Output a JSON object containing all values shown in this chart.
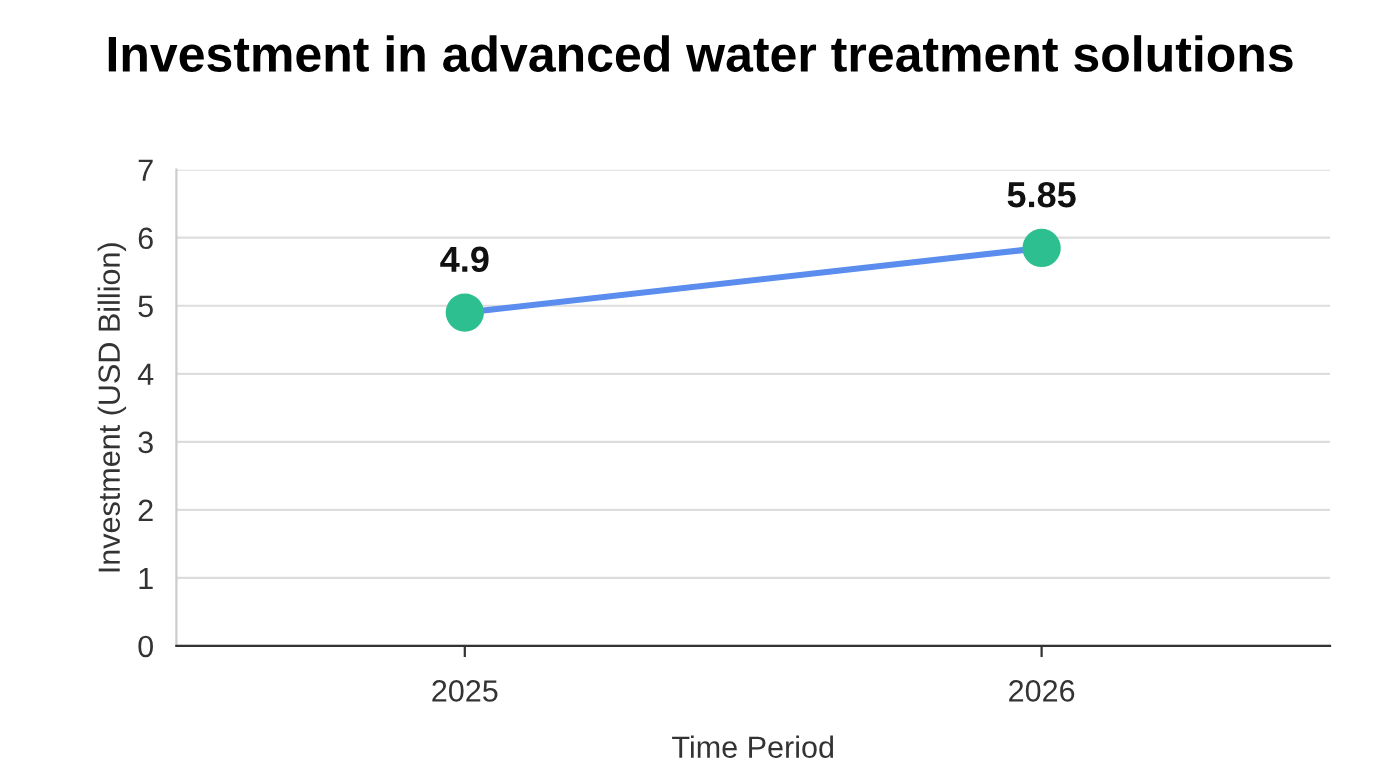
{
  "chart_data": {
    "type": "line",
    "title": "Investment in advanced water treatment solutions",
    "xlabel": "Time Period",
    "ylabel": "Investment (USD Billion)",
    "categories": [
      "2025",
      "2026"
    ],
    "series": [
      {
        "color": "#5b8def",
        "colors": [
          "#2ebf91",
          "#2ebf91"
        ],
        "values": [
          4.9,
          5.85
        ]
      }
    ],
    "marker": "circle",
    "line_style": "solid",
    "data_labels": true,
    "ylim": [
      0,
      7
    ],
    "yticks": [
      0,
      1,
      2,
      3,
      4,
      5,
      6,
      7
    ],
    "grid": "y"
  }
}
